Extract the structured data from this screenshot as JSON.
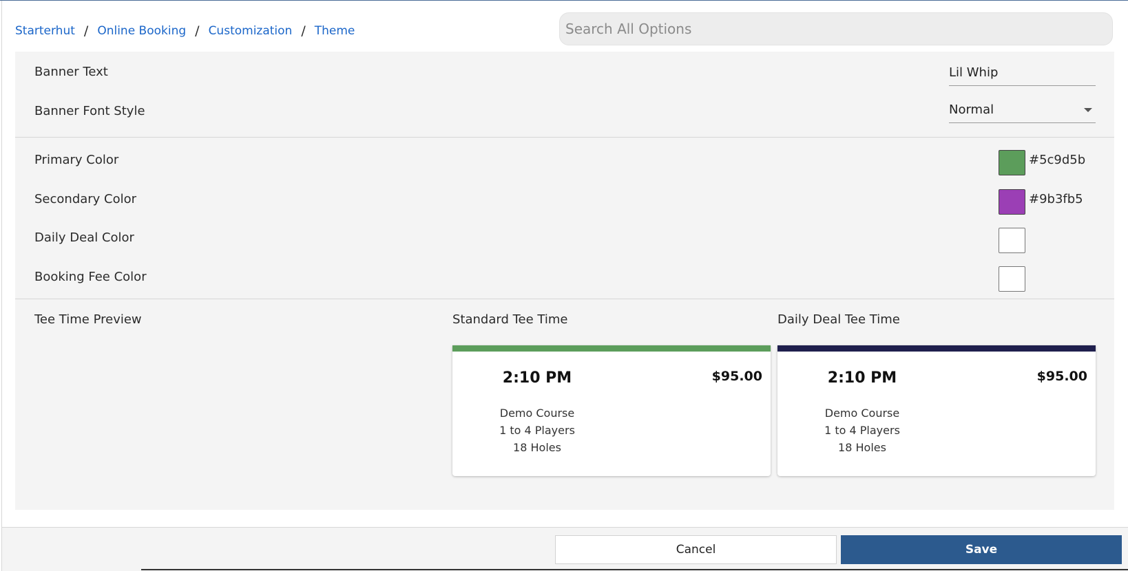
{
  "breadcrumb": {
    "items": [
      "Starterhut",
      "Online Booking",
      "Customization",
      "Theme"
    ],
    "separator": "/"
  },
  "search": {
    "placeholder": "Search All Options",
    "value": ""
  },
  "banner": {
    "text_label": "Banner Text",
    "text_value": "Lil Whip",
    "font_style_label": "Banner Font Style",
    "font_style_value": "Normal"
  },
  "colors": {
    "primary_label": "Primary Color",
    "primary_value": "#5c9d5b",
    "secondary_label": "Secondary Color",
    "secondary_value": "#9b3fb5",
    "daily_deal_label": "Daily Deal Color",
    "booking_fee_label": "Booking Fee Color"
  },
  "preview": {
    "label": "Tee Time Preview",
    "standard": {
      "title": "Standard Tee Time",
      "bar_color": "#5c9d5b",
      "time": "2:10 PM",
      "price": "$95.00",
      "course": "Demo Course",
      "players": "1 to 4 Players",
      "holes": "18 Holes"
    },
    "daily_deal": {
      "title": "Daily Deal Tee Time",
      "bar_color": "#1f1f4d",
      "time": "2:10 PM",
      "price": "$95.00",
      "course": "Demo Course",
      "players": "1 to 4 Players",
      "holes": "18 Holes"
    }
  },
  "footer": {
    "cancel_label": "Cancel",
    "save_label": "Save"
  }
}
